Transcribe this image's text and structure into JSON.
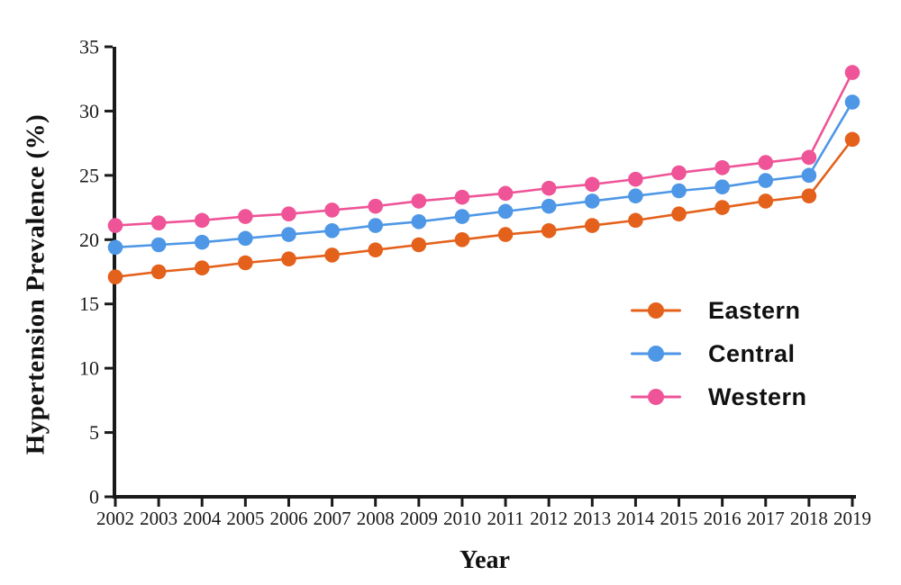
{
  "figure": {
    "background": "#ffffff",
    "axis_color": "#1a1a1a",
    "text_color": "#1a1a1a"
  },
  "chart_data": {
    "type": "line",
    "title": "",
    "xlabel": "Year",
    "ylabel": "Hypertension Prevalence (%)",
    "x": [
      2002,
      2003,
      2004,
      2005,
      2006,
      2007,
      2008,
      2009,
      2010,
      2011,
      2012,
      2013,
      2014,
      2015,
      2016,
      2017,
      2018,
      2019
    ],
    "x_tick_labels": [
      "2002",
      "2003",
      "2004",
      "2005",
      "2006",
      "2007",
      "2008",
      "2009",
      "2010",
      "2011",
      "2012",
      "2013",
      "2014",
      "2015",
      "2016",
      "2017",
      "2018",
      "2019"
    ],
    "y_ticks": [
      0,
      5,
      10,
      15,
      20,
      25,
      30,
      35
    ],
    "ylim": [
      0,
      35
    ],
    "grid": false,
    "legend_position": "middle-right",
    "marker": "circle",
    "series": [
      {
        "name": "Eastern",
        "color": "#E4611C",
        "values": [
          17.1,
          17.5,
          17.8,
          18.2,
          18.5,
          18.8,
          19.2,
          19.6,
          20.0,
          20.4,
          20.7,
          21.1,
          21.5,
          22.0,
          22.5,
          23.0,
          23.4,
          27.8
        ]
      },
      {
        "name": "Central",
        "color": "#4E97E6",
        "values": [
          19.4,
          19.6,
          19.8,
          20.1,
          20.4,
          20.7,
          21.1,
          21.4,
          21.8,
          22.2,
          22.6,
          23.0,
          23.4,
          23.8,
          24.1,
          24.6,
          25.0,
          30.7
        ]
      },
      {
        "name": "Western",
        "color": "#EE5497",
        "values": [
          21.1,
          21.3,
          21.5,
          21.8,
          22.0,
          22.3,
          22.6,
          23.0,
          23.3,
          23.6,
          24.0,
          24.3,
          24.7,
          25.2,
          25.6,
          26.0,
          26.4,
          33.0
        ]
      }
    ]
  }
}
